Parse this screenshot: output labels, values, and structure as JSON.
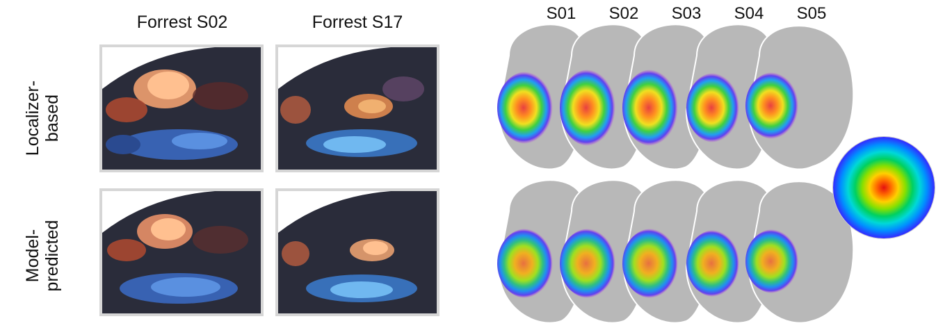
{
  "left_panel": {
    "columns": [
      "Forrest S02",
      "Forrest S17"
    ],
    "rows": [
      {
        "line1": "Localizer-",
        "line2": "based"
      },
      {
        "line1": "Model-",
        "line2": "predicted"
      }
    ]
  },
  "right_panel": {
    "subjects": [
      "S01",
      "S02",
      "S03",
      "S04",
      "S05"
    ]
  }
}
